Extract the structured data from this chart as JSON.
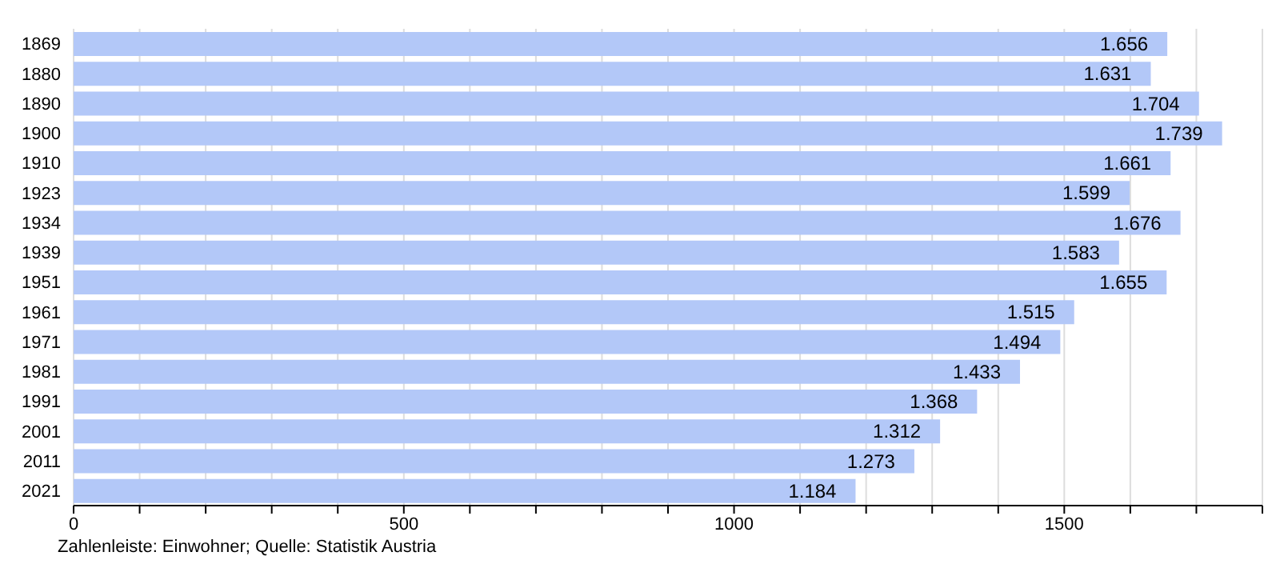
{
  "chart_data": {
    "type": "bar",
    "orientation": "horizontal",
    "categories": [
      "1869",
      "1880",
      "1890",
      "1900",
      "1910",
      "1923",
      "1934",
      "1939",
      "1951",
      "1961",
      "1971",
      "1981",
      "1991",
      "2001",
      "2011",
      "2021"
    ],
    "values": [
      1656,
      1631,
      1704,
      1739,
      1661,
      1599,
      1676,
      1583,
      1655,
      1515,
      1494,
      1433,
      1368,
      1312,
      1273,
      1184
    ],
    "value_labels": [
      "1.656",
      "1.631",
      "1.704",
      "1.739",
      "1.661",
      "1.599",
      "1.676",
      "1.583",
      "1.655",
      "1.515",
      "1.494",
      "1.433",
      "1.368",
      "1.312",
      "1.273",
      "1.184"
    ],
    "color": "#b3c8f8",
    "xlim": [
      0,
      1800
    ],
    "xticks": [
      0,
      {
        "value": 100,
        "label": null
      },
      {
        "value": 200,
        "label": null
      },
      {
        "value": 300,
        "label": null
      },
      {
        "value": 400,
        "label": null
      },
      500,
      {
        "value": 600,
        "label": null
      },
      {
        "value": 700,
        "label": null
      },
      {
        "value": 800,
        "label": null
      },
      {
        "value": 900,
        "label": null
      },
      1000,
      {
        "value": 1100,
        "label": null
      },
      {
        "value": 1200,
        "label": null
      },
      {
        "value": 1300,
        "label": null
      },
      {
        "value": 1400,
        "label": null
      },
      1500,
      {
        "value": 1600,
        "label": null
      },
      {
        "value": 1700,
        "label": null
      },
      {
        "value": 1800,
        "label": null
      }
    ],
    "grid": "x",
    "annotations": [
      "Zahlenleiste: Einwohner; Quelle: Statistik Austria"
    ]
  }
}
